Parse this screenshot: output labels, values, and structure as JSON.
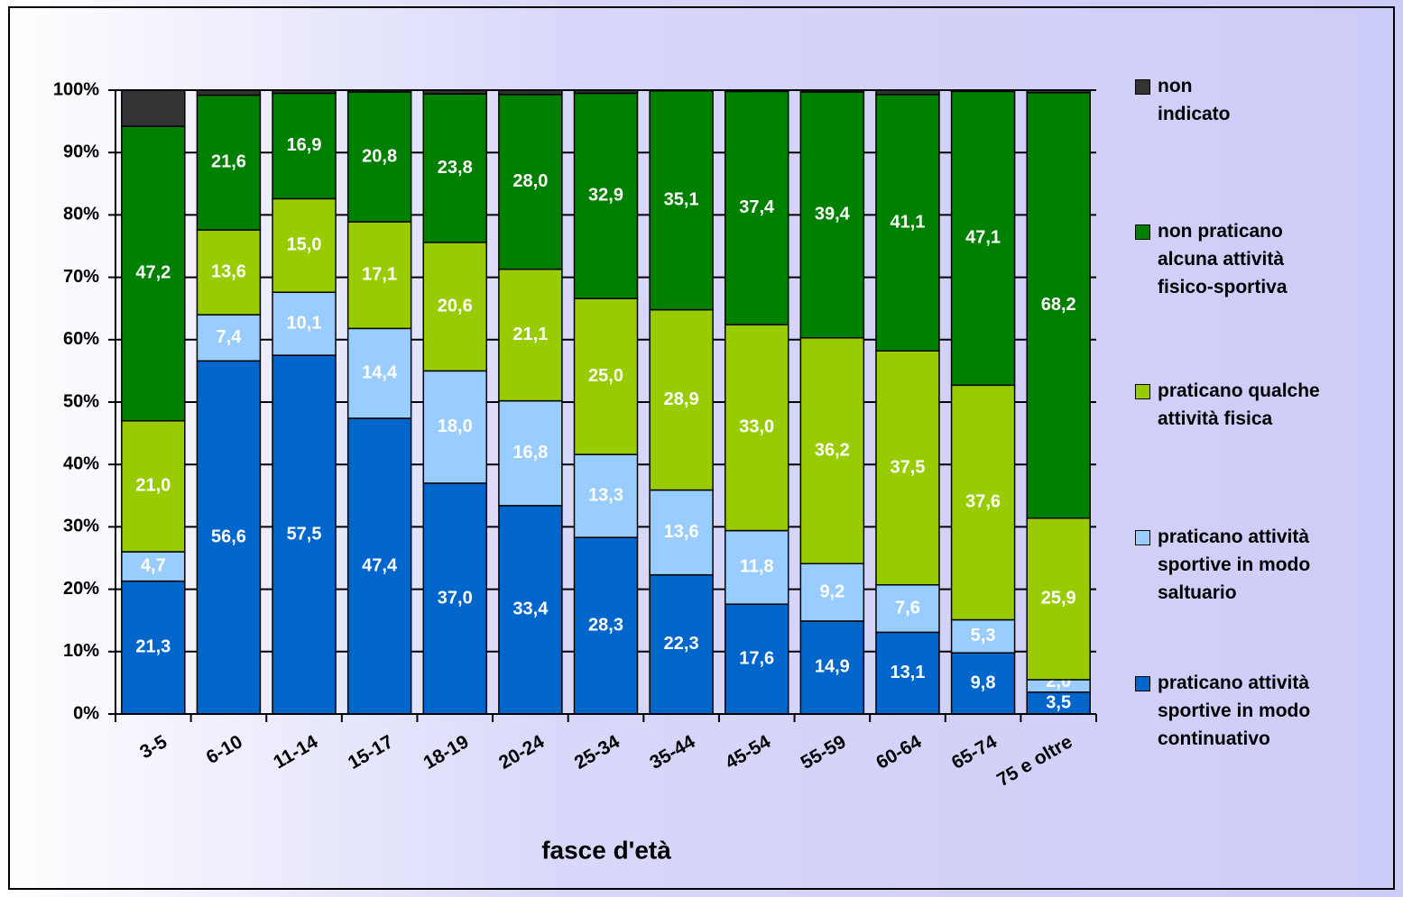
{
  "chart_data": {
    "type": "stacked_bar",
    "x_label": "fasce d'età",
    "categories": [
      "3-5",
      "6-10",
      "11-14",
      "15-17",
      "18-19",
      "20-24",
      "25-34",
      "35-44",
      "45-54",
      "55-59",
      "60-64",
      "65-74",
      "75 e oltre"
    ],
    "series": [
      {
        "name": "praticano attività\nsportive in modo\ncontinuativo",
        "color": "#0066cc",
        "values": [
          21.3,
          56.6,
          57.5,
          47.4,
          37.0,
          33.4,
          28.3,
          22.3,
          17.6,
          14.9,
          13.1,
          9.8,
          3.5
        ],
        "value_labels": [
          "21,3",
          "56,6",
          "57,5",
          "47,4",
          "37,0",
          "33,4",
          "28,3",
          "22,3",
          "17,6",
          "14,9",
          "13,1",
          "9,8",
          "3,5"
        ]
      },
      {
        "name": "praticano attività\nsportive in modo\nsaltuario",
        "color": "#99ccff",
        "values": [
          4.7,
          7.4,
          10.1,
          14.4,
          18.0,
          16.8,
          13.3,
          13.6,
          11.8,
          9.2,
          7.6,
          5.3,
          2.0
        ],
        "value_labels": [
          "4,7",
          "7,4",
          "10,1",
          "14,4",
          "18,0",
          "16,8",
          "13,3",
          "13,6",
          "11,8",
          "9,2",
          "7,6",
          "5,3",
          "2,0"
        ]
      },
      {
        "name": "praticano qualche\nattività fisica",
        "color": "#99cc00",
        "values": [
          21.0,
          13.6,
          15.0,
          17.1,
          20.6,
          21.1,
          25.0,
          28.9,
          33.0,
          36.2,
          37.5,
          37.6,
          25.9
        ],
        "value_labels": [
          "21,0",
          "13,6",
          "15,0",
          "17,1",
          "20,6",
          "21,1",
          "25,0",
          "28,9",
          "33,0",
          "36,2",
          "37,5",
          "37,6",
          "25,9"
        ]
      },
      {
        "name": "non praticano\nalcuna attività\nfisico-sportiva",
        "color": "#008000",
        "values": [
          47.2,
          21.6,
          16.9,
          20.8,
          23.8,
          28.0,
          32.9,
          35.1,
          37.4,
          39.4,
          41.1,
          47.1,
          68.2
        ],
        "value_labels": [
          "47,2",
          "21,6",
          "16,9",
          "20,8",
          "23,8",
          "28,0",
          "32,9",
          "35,1",
          "37,4",
          "39,4",
          "41,1",
          "47,1",
          "68,2"
        ]
      },
      {
        "name": "non\nindicato",
        "color": "#333333",
        "values": [
          5.8,
          0.8,
          0.5,
          0.3,
          0.6,
          0.7,
          0.5,
          0.1,
          0.2,
          0.3,
          0.7,
          0.2,
          0.4
        ]
      }
    ],
    "ylim": [
      0,
      100
    ],
    "yticks": [
      {
        "value": 0,
        "label": "0%"
      },
      {
        "value": 10,
        "label": "10%"
      },
      {
        "value": 20,
        "label": "20%"
      },
      {
        "value": 30,
        "label": "30%"
      },
      {
        "value": 40,
        "label": "40%"
      },
      {
        "value": 50,
        "label": "50%"
      },
      {
        "value": 60,
        "label": "60%"
      },
      {
        "value": 70,
        "label": "70%"
      },
      {
        "value": 80,
        "label": "80%"
      },
      {
        "value": 90,
        "label": "90%"
      },
      {
        "value": 100,
        "label": "100%"
      }
    ],
    "grid": true,
    "legend": "right"
  }
}
